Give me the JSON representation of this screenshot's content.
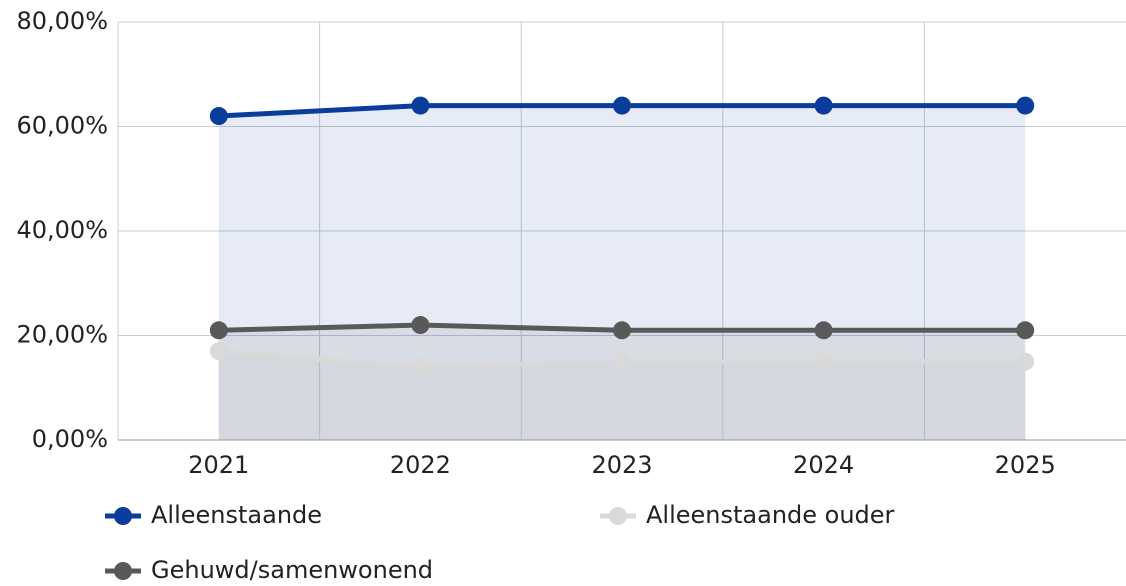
{
  "chart_data": {
    "type": "line",
    "categories": [
      "2021",
      "2022",
      "2023",
      "2024",
      "2025"
    ],
    "series": [
      {
        "name": "Alleenstaande",
        "color": "#0a3c9c",
        "values": [
          62,
          64,
          64,
          64,
          64
        ]
      },
      {
        "name": "Alleenstaande ouder",
        "color": "#d9d9d9",
        "values": [
          17,
          14,
          15,
          15,
          15
        ]
      },
      {
        "name": "Gehuwd/samenwonend",
        "color": "#595959",
        "values": [
          21,
          22,
          21,
          21,
          21
        ]
      }
    ],
    "ylim": [
      0,
      80
    ],
    "yticks": [
      {
        "value": 0,
        "label": "0,00%"
      },
      {
        "value": 20,
        "label": "20,00%"
      },
      {
        "value": 40,
        "label": "40,00%"
      },
      {
        "value": 60,
        "label": "60,00%"
      },
      {
        "value": 80,
        "label": "80,00%"
      }
    ],
    "grid": true,
    "legend": "bottom"
  }
}
